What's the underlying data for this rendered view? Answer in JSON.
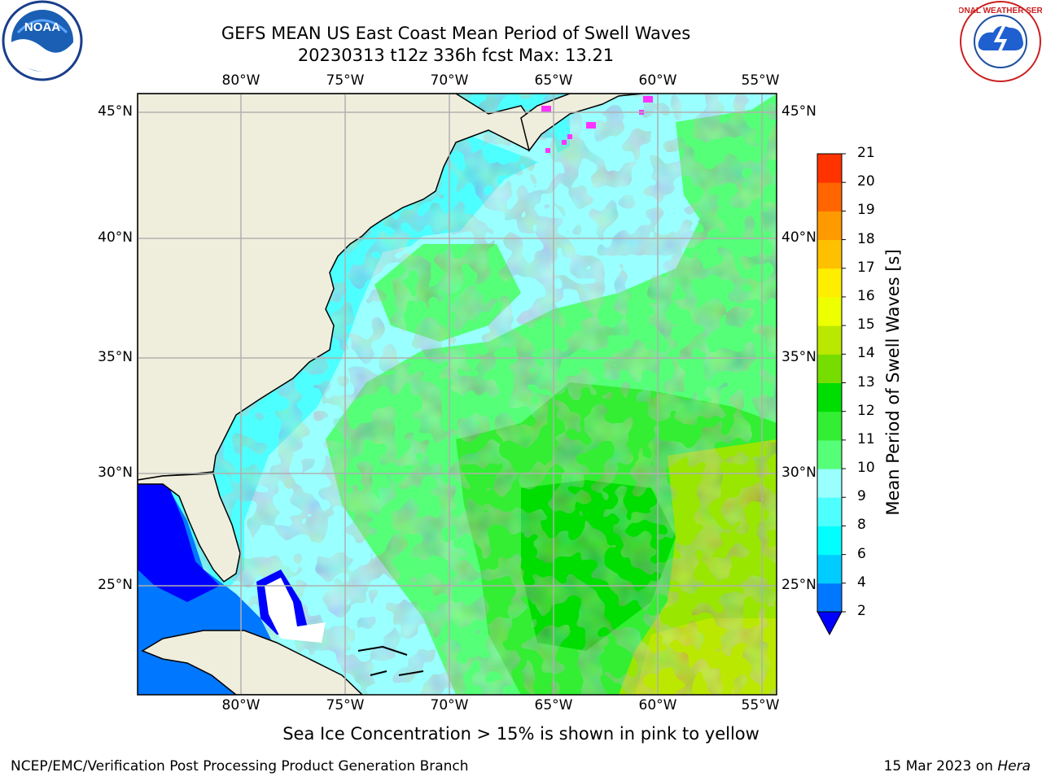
{
  "title": {
    "line1": "GEFS MEAN US East Coast Mean Period of Swell Waves",
    "line2": "20230313 t12z 336h fcst   Max: 13.21"
  },
  "logos": {
    "left": {
      "name": "noaa-logo",
      "text": "NOAA"
    },
    "right": {
      "name": "national-weather-service-logo",
      "text": "NATIONAL WEATHER SERVICE"
    }
  },
  "map": {
    "lon_labels": [
      "80°W",
      "75°W",
      "70°W",
      "65°W",
      "60°W",
      "55°W"
    ],
    "lat_labels": [
      "45°N",
      "40°N",
      "35°N",
      "30°N",
      "25°N"
    ],
    "colors": {
      "land": "#efeedd",
      "grid": "#b0b0b0",
      "coast": "#000000",
      "ice": "#ff33ff"
    }
  },
  "colorbar": {
    "label": "Mean Period of Swell Waves [s]",
    "ticks": [
      "2",
      "4",
      "6",
      "8",
      "9",
      "10",
      "11",
      "12",
      "13",
      "14",
      "15",
      "16",
      "17",
      "18",
      "19",
      "20",
      "21"
    ],
    "colors": [
      "#0077ff",
      "#00ccff",
      "#00ffff",
      "#4dffff",
      "#99ffff",
      "#55ff77",
      "#33ee33",
      "#00dd00",
      "#77dd00",
      "#bbe800",
      "#eeff00",
      "#ffee00",
      "#ffc000",
      "#ff9900",
      "#ff6600",
      "#ff3300",
      "#ff0000"
    ],
    "extend_color": "#0000ff"
  },
  "note": "Sea Ice Concentration > 15% is shown in pink to yellow",
  "footer": {
    "left": "NCEP/EMC/Verification Post Processing Product Generation Branch",
    "right_date": "15 Mar 2023 on",
    "right_host": "Hera"
  }
}
